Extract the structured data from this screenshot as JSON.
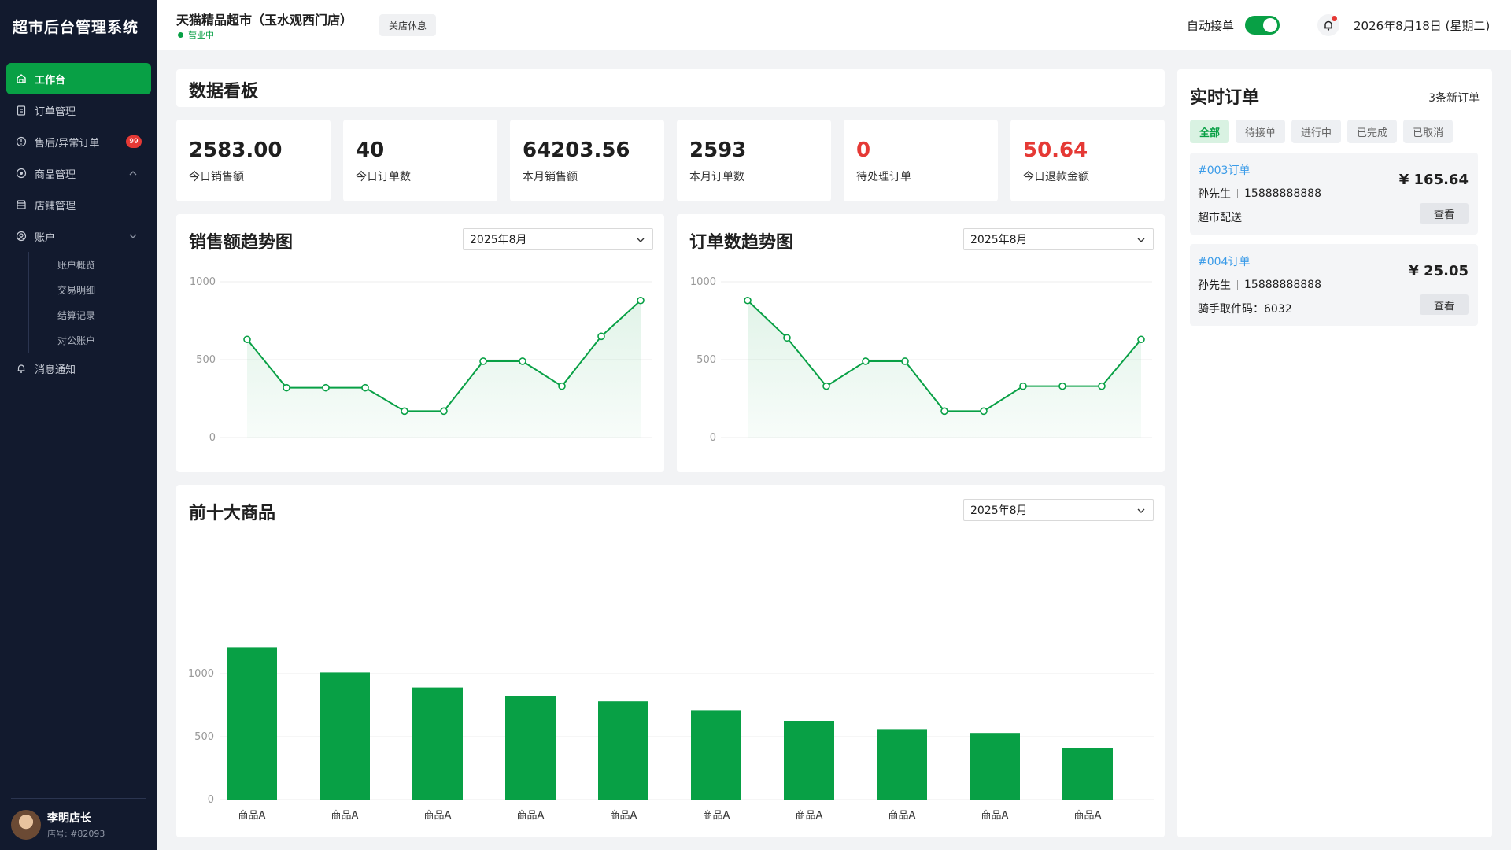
{
  "app": {
    "title": "超市后台管理系统"
  },
  "sidebar": {
    "items": [
      {
        "label": "工作台",
        "icon": "home-icon",
        "active": true
      },
      {
        "label": "订单管理",
        "icon": "clipboard-icon"
      },
      {
        "label": "售后/异常订单",
        "icon": "alert-icon",
        "badge": "99"
      },
      {
        "label": "商品管理",
        "icon": "product-icon",
        "expanded": true
      },
      {
        "label": "店铺管理",
        "icon": "store-icon"
      },
      {
        "label": "账户",
        "icon": "user-icon",
        "expanded": false
      }
    ],
    "account_sub": [
      "账户概览",
      "交易明细",
      "结算记录",
      "对公账户"
    ],
    "notify": {
      "label": "消息通知",
      "icon": "bell-icon"
    },
    "user": {
      "name": "李明店长",
      "id": "店号: #82093"
    }
  },
  "header": {
    "store_name": "天猫精品超市（玉水观西门店）",
    "status": "营业中",
    "close_button": "关店休息",
    "auto_accept_label": "自动接单",
    "auto_accept_on": true,
    "date": "2026年8月18日 (星期二)"
  },
  "dashboard": {
    "title": "数据看板",
    "stats": [
      {
        "value": "2583.00",
        "label": "今日销售额",
        "highlight": false
      },
      {
        "value": "40",
        "label": "今日订单数",
        "highlight": false
      },
      {
        "value": "64203.56",
        "label": "本月销售额",
        "highlight": false
      },
      {
        "value": "2593",
        "label": "本月订单数",
        "highlight": false
      },
      {
        "value": "0",
        "label": "待处理订单",
        "highlight": true
      },
      {
        "value": "50.64",
        "label": "今日退款金额",
        "highlight": true
      }
    ]
  },
  "colors": {
    "primary": "#08a045",
    "danger": "#e53935",
    "link": "#3a9be8"
  },
  "chart_data": [
    {
      "type": "line",
      "title": "销售额趋势图",
      "period": "2025年8月",
      "ylim": [
        0,
        1000
      ],
      "yticks": [
        0,
        500,
        1000
      ],
      "values": [
        630,
        320,
        320,
        320,
        170,
        170,
        490,
        490,
        330,
        650,
        880
      ],
      "grid": true
    },
    {
      "type": "line",
      "title": "订单数趋势图",
      "period": "2025年8月",
      "ylim": [
        0,
        1000
      ],
      "yticks": [
        0,
        500,
        1000
      ],
      "values": [
        880,
        640,
        330,
        490,
        490,
        170,
        170,
        330,
        330,
        330,
        630
      ],
      "grid": true
    },
    {
      "type": "bar",
      "title": "前十大商品",
      "period": "2025年8月",
      "ylim": [
        0,
        1000
      ],
      "yticks": [
        0,
        500,
        1000
      ],
      "categories": [
        "商品A",
        "商品A",
        "商品A",
        "商品A",
        "商品A",
        "商品A",
        "商品A",
        "商品A",
        "商品A",
        "商品A"
      ],
      "values": [
        1210,
        1010,
        890,
        825,
        780,
        710,
        625,
        560,
        530,
        410
      ],
      "grid": true
    }
  ],
  "orders_panel": {
    "title": "实时订单",
    "count": "3条新订单",
    "filters": [
      "全部",
      "待接单",
      "进行中",
      "已完成",
      "已取消"
    ],
    "orders": [
      {
        "no": "#003订单",
        "name": "孙先生",
        "phone": "15888888888",
        "extra": "超市配送",
        "amount": "¥ 165.64",
        "button": "查看"
      },
      {
        "no": "#004订单",
        "name": "孙先生",
        "phone": "15888888888",
        "extra": "骑手取件码：6032",
        "amount": "¥ 25.05",
        "button": "查看"
      }
    ]
  }
}
